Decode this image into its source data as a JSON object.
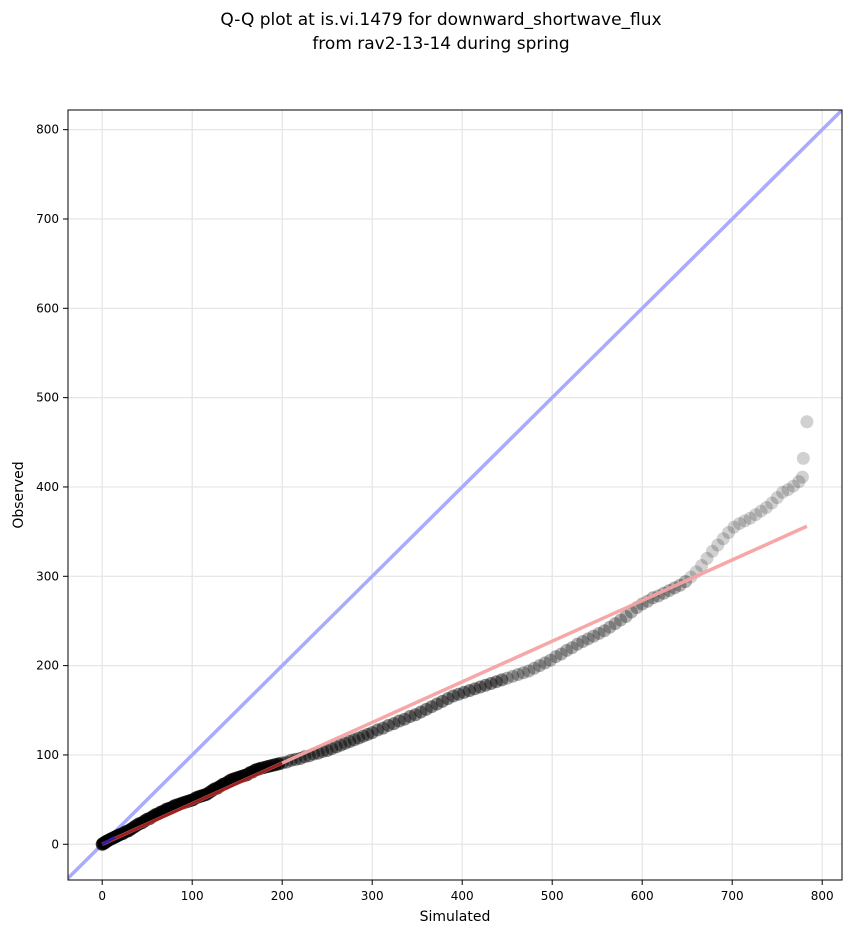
{
  "chart_data": {
    "type": "scatter",
    "title_line1": "Q-Q plot at is.vi.1479 for downward_shortwave_flux",
    "title_line2": "from rav2-13-14 during spring",
    "xlabel": "Simulated",
    "ylabel": "Observed",
    "xlim": [
      -38,
      822
    ],
    "ylim": [
      -40,
      822
    ],
    "xticks": [
      0,
      100,
      200,
      300,
      400,
      500,
      600,
      700,
      800
    ],
    "yticks": [
      0,
      100,
      200,
      300,
      400,
      500,
      600,
      700,
      800
    ],
    "grid": true,
    "colors": {
      "points": "#000000",
      "reference_line": "#aaaaff",
      "fit_line": "#f5a3a3",
      "fit_line_dark": "#8b0000",
      "start_blue": "#1a1acc"
    },
    "reference_line": {
      "x": [
        -38,
        822
      ],
      "y": [
        -38,
        822
      ]
    },
    "fit_line": {
      "x": [
        0,
        783
      ],
      "y": [
        0,
        356
      ]
    },
    "points": [
      [
        0,
        0
      ],
      [
        1,
        1
      ],
      [
        2,
        1
      ],
      [
        3,
        2
      ],
      [
        4,
        3
      ],
      [
        5,
        3
      ],
      [
        6,
        4
      ],
      [
        8,
        5
      ],
      [
        10,
        6
      ],
      [
        12,
        7
      ],
      [
        14,
        8
      ],
      [
        16,
        9
      ],
      [
        18,
        10
      ],
      [
        20,
        11
      ],
      [
        23,
        12
      ],
      [
        26,
        14
      ],
      [
        29,
        15
      ],
      [
        32,
        17
      ],
      [
        35,
        19
      ],
      [
        38,
        21
      ],
      [
        41,
        23
      ],
      [
        44,
        24
      ],
      [
        47,
        26
      ],
      [
        50,
        28
      ],
      [
        53,
        29
      ],
      [
        56,
        31
      ],
      [
        59,
        33
      ],
      [
        62,
        34
      ],
      [
        65,
        36
      ],
      [
        68,
        37
      ],
      [
        71,
        39
      ],
      [
        74,
        40
      ],
      [
        77,
        41
      ],
      [
        80,
        43
      ],
      [
        83,
        44
      ],
      [
        86,
        45
      ],
      [
        89,
        46
      ],
      [
        92,
        47
      ],
      [
        95,
        48
      ],
      [
        98,
        49
      ],
      [
        101,
        50
      ],
      [
        104,
        52
      ],
      [
        107,
        53
      ],
      [
        110,
        54
      ],
      [
        113,
        55
      ],
      [
        116,
        56
      ],
      [
        119,
        58
      ],
      [
        122,
        60
      ],
      [
        125,
        62
      ],
      [
        128,
        63
      ],
      [
        131,
        65
      ],
      [
        134,
        67
      ],
      [
        137,
        68
      ],
      [
        140,
        70
      ],
      [
        143,
        72
      ],
      [
        146,
        73
      ],
      [
        149,
        74
      ],
      [
        152,
        75
      ],
      [
        155,
        76
      ],
      [
        158,
        77
      ],
      [
        161,
        78
      ],
      [
        164,
        80
      ],
      [
        167,
        81
      ],
      [
        170,
        83
      ],
      [
        173,
        84
      ],
      [
        176,
        85
      ],
      [
        180,
        86
      ],
      [
        184,
        87
      ],
      [
        188,
        88
      ],
      [
        192,
        89
      ],
      [
        196,
        90
      ],
      [
        200,
        91
      ],
      [
        205,
        92
      ],
      [
        210,
        94
      ],
      [
        215,
        95
      ],
      [
        220,
        96
      ],
      [
        225,
        98
      ],
      [
        230,
        99
      ],
      [
        235,
        101
      ],
      [
        240,
        102
      ],
      [
        245,
        104
      ],
      [
        250,
        105
      ],
      [
        255,
        107
      ],
      [
        260,
        109
      ],
      [
        265,
        111
      ],
      [
        270,
        113
      ],
      [
        275,
        115
      ],
      [
        280,
        117
      ],
      [
        285,
        119
      ],
      [
        290,
        121
      ],
      [
        295,
        123
      ],
      [
        300,
        125
      ],
      [
        306,
        128
      ],
      [
        312,
        130
      ],
      [
        318,
        133
      ],
      [
        324,
        135
      ],
      [
        330,
        138
      ],
      [
        336,
        140
      ],
      [
        342,
        143
      ],
      [
        348,
        145
      ],
      [
        354,
        148
      ],
      [
        360,
        151
      ],
      [
        366,
        154
      ],
      [
        372,
        157
      ],
      [
        378,
        160
      ],
      [
        384,
        163
      ],
      [
        390,
        166
      ],
      [
        396,
        168
      ],
      [
        402,
        170
      ],
      [
        408,
        172
      ],
      [
        414,
        174
      ],
      [
        420,
        176
      ],
      [
        426,
        178
      ],
      [
        432,
        180
      ],
      [
        438,
        182
      ],
      [
        444,
        184
      ],
      [
        450,
        186
      ],
      [
        456,
        188
      ],
      [
        462,
        190
      ],
      [
        468,
        192
      ],
      [
        474,
        194
      ],
      [
        480,
        197
      ],
      [
        486,
        200
      ],
      [
        492,
        203
      ],
      [
        498,
        206
      ],
      [
        504,
        210
      ],
      [
        510,
        213
      ],
      [
        516,
        217
      ],
      [
        522,
        220
      ],
      [
        528,
        224
      ],
      [
        534,
        227
      ],
      [
        540,
        230
      ],
      [
        546,
        233
      ],
      [
        552,
        236
      ],
      [
        558,
        239
      ],
      [
        564,
        243
      ],
      [
        570,
        247
      ],
      [
        576,
        251
      ],
      [
        582,
        255
      ],
      [
        588,
        260
      ],
      [
        594,
        265
      ],
      [
        600,
        269
      ],
      [
        606,
        272
      ],
      [
        612,
        276
      ],
      [
        618,
        278
      ],
      [
        624,
        281
      ],
      [
        630,
        284
      ],
      [
        636,
        287
      ],
      [
        642,
        290
      ],
      [
        648,
        294
      ],
      [
        654,
        299
      ],
      [
        660,
        305
      ],
      [
        666,
        312
      ],
      [
        672,
        320
      ],
      [
        678,
        328
      ],
      [
        684,
        335
      ],
      [
        690,
        342
      ],
      [
        696,
        349
      ],
      [
        702,
        355
      ],
      [
        708,
        359
      ],
      [
        714,
        362
      ],
      [
        720,
        365
      ],
      [
        726,
        369
      ],
      [
        732,
        373
      ],
      [
        738,
        377
      ],
      [
        744,
        382
      ],
      [
        750,
        388
      ],
      [
        756,
        394
      ],
      [
        762,
        397
      ],
      [
        768,
        401
      ],
      [
        774,
        406
      ],
      [
        778,
        411
      ],
      [
        779,
        432
      ],
      [
        783,
        473
      ]
    ]
  }
}
